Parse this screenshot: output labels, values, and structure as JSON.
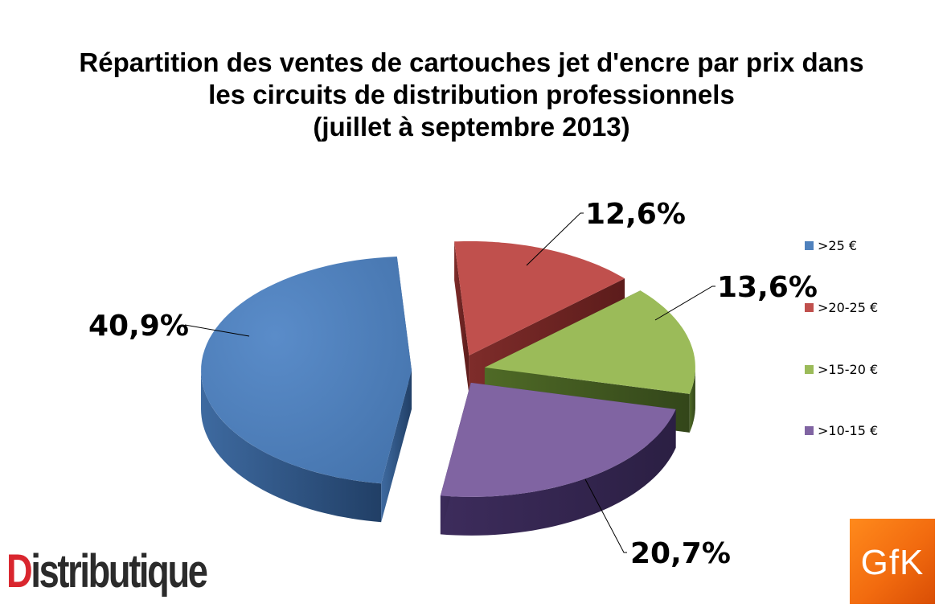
{
  "title_lines": [
    "Répartition des ventes de cartouches jet d'encre par prix dans",
    "les circuits de distribution professionnels",
    "(juillet à septembre 2013)"
  ],
  "chart_data": {
    "type": "pie",
    "style": "3d-exploded",
    "title": "Répartition des ventes de cartouches jet d'encre par prix dans les circuits de distribution professionnels (juillet à septembre 2013)",
    "categories": [
      ">25 €",
      ">20-25 €",
      ">15-20 €",
      ">10-15 €"
    ],
    "values": [
      40.9,
      12.6,
      13.6,
      20.7
    ],
    "labels": [
      "40,9%",
      "12,6%",
      "13,6%",
      "20,7%"
    ],
    "colors": [
      "#4f81bd",
      "#c0504d",
      "#9bbb59",
      "#8064a2"
    ],
    "legend_position": "right"
  },
  "logos": {
    "distributique_prefix": "D",
    "distributique_rest": "istributique",
    "gfk": "GfK"
  }
}
